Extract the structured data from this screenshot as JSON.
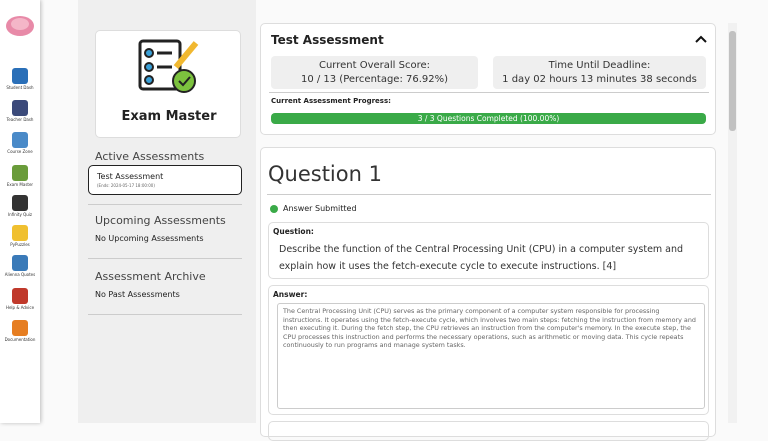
{
  "sidebar": {
    "items": [
      {
        "label": "Student Dash"
      },
      {
        "label": "Teacher Dash"
      },
      {
        "label": "Course Zone"
      },
      {
        "label": "Exam Master"
      },
      {
        "label": "Infinity Quiz"
      },
      {
        "label": "PyPuzzles"
      },
      {
        "label": "Alienna Quotes"
      },
      {
        "label": "Help & Advice"
      },
      {
        "label": "Documentation"
      }
    ]
  },
  "left_panel": {
    "title": "Exam Master",
    "active": {
      "heading": "Active Assessments",
      "item": {
        "name": "Test Assessment",
        "ends": "(Ends: 2024-05-17 18:00:00)"
      }
    },
    "upcoming": {
      "heading": "Upcoming Assessments",
      "empty": "No Upcoming Assessments"
    },
    "archive": {
      "heading": "Assessment Archive",
      "empty": "No Past Assessments"
    }
  },
  "assessment": {
    "title": "Test Assessment",
    "score_label": "Current Overall Score:",
    "score": "10 / 13 (Percentage: 76.92%)",
    "deadline_label": "Time Until Deadline:",
    "deadline": "1 day 02 hours 13 minutes 38 seconds",
    "progress_label": "Current Assessment Progress:",
    "progress": "3 / 3 Questions Completed (100.00%)"
  },
  "question": {
    "heading": "Question 1",
    "status": "Answer Submitted",
    "question_label": "Question:",
    "question_text": "Describe the function of the Central Processing Unit (CPU) in a computer system and explain how it uses the fetch-execute cycle to execute instructions. [4]",
    "answer_label": "Answer:",
    "answer_text": "The Central Processing Unit (CPU) serves as the primary component of a computer system responsible for processing instructions. It operates using the fetch-execute cycle, which involves two main steps: fetching the instruction from memory and then executing it. During the fetch step, the CPU retrieves an instruction from the computer's memory. In the execute step, the CPU processes this instruction and performs the necessary operations, such as arithmetic or moving data. This cycle repeats continuously to run programs and manage system tasks."
  }
}
